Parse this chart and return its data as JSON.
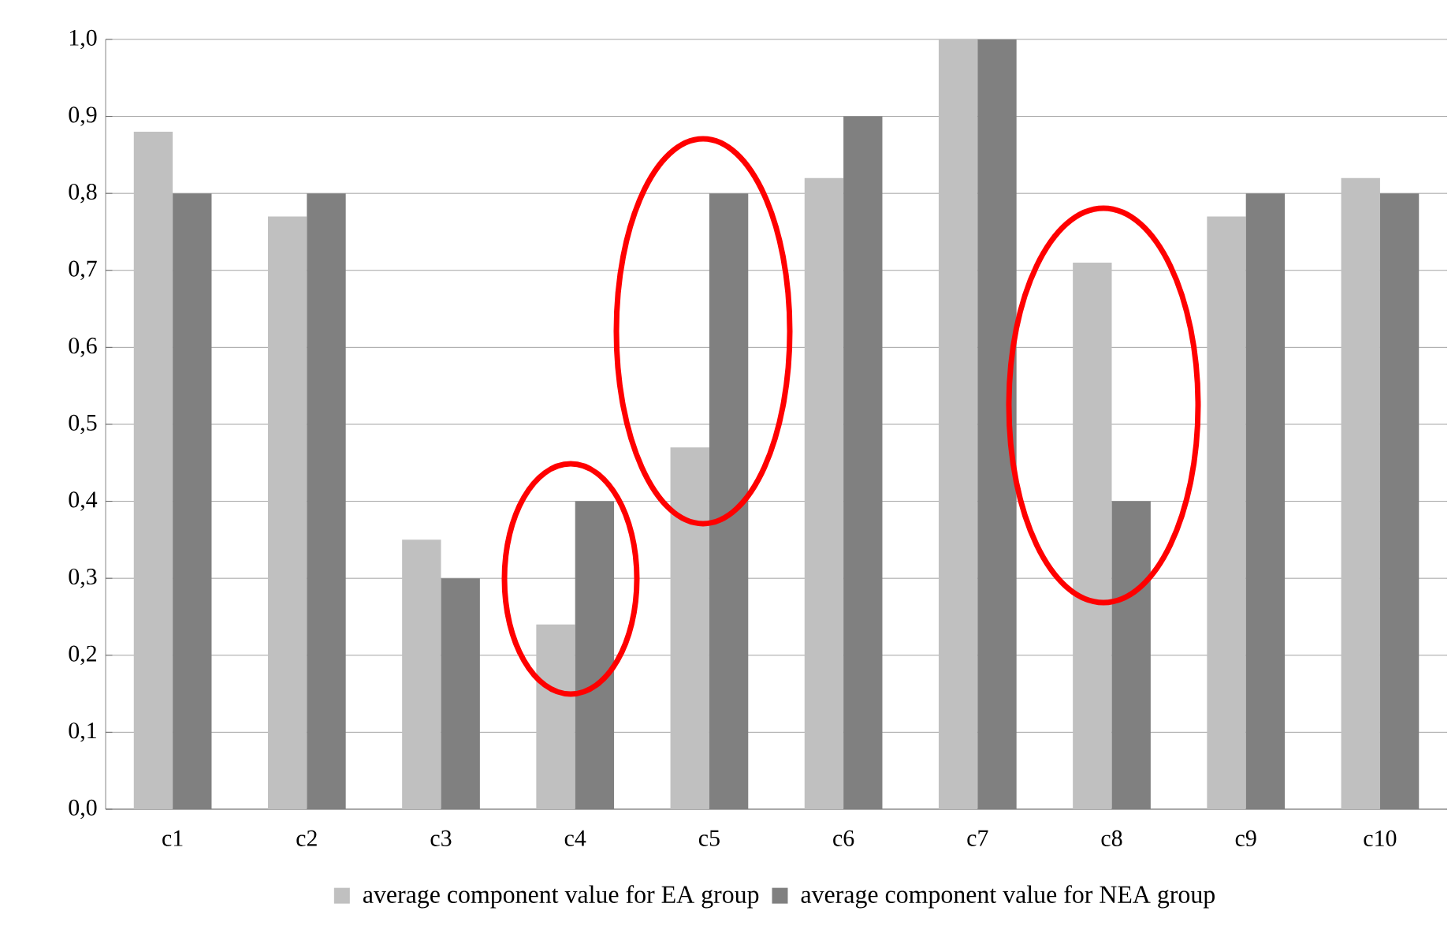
{
  "chart_data": {
    "type": "bar",
    "categories": [
      "c1",
      "c2",
      "c3",
      "c4",
      "c5",
      "c6",
      "c7",
      "c8",
      "c9",
      "c10"
    ],
    "series": [
      {
        "name": "average component value for EA group",
        "color": "#c0c0c0",
        "values": [
          0.88,
          0.77,
          0.35,
          0.24,
          0.47,
          0.82,
          1.0,
          0.71,
          0.77,
          0.82
        ]
      },
      {
        "name": "average component value for NEA group",
        "color": "#808080",
        "values": [
          0.8,
          0.8,
          0.3,
          0.4,
          0.8,
          0.9,
          1.0,
          0.4,
          0.8,
          0.8
        ]
      }
    ],
    "ylim": [
      0,
      1
    ],
    "yticks": [
      {
        "value": 0,
        "label": "0,0"
      },
      {
        "value": 0.1,
        "label": "0,1"
      },
      {
        "value": 0.2,
        "label": "0,2"
      },
      {
        "value": 0.3,
        "label": "0,3"
      },
      {
        "value": 0.4,
        "label": "0,4"
      },
      {
        "value": 0.5,
        "label": "0,5"
      },
      {
        "value": 0.6,
        "label": "0,6"
      },
      {
        "value": 0.7,
        "label": "0,7"
      },
      {
        "value": 0.8,
        "label": "0,8"
      },
      {
        "value": 0.9,
        "label": "0,9"
      },
      {
        "value": 1,
        "label": "1,0"
      }
    ],
    "grid": "y",
    "legend": "bottom"
  }
}
